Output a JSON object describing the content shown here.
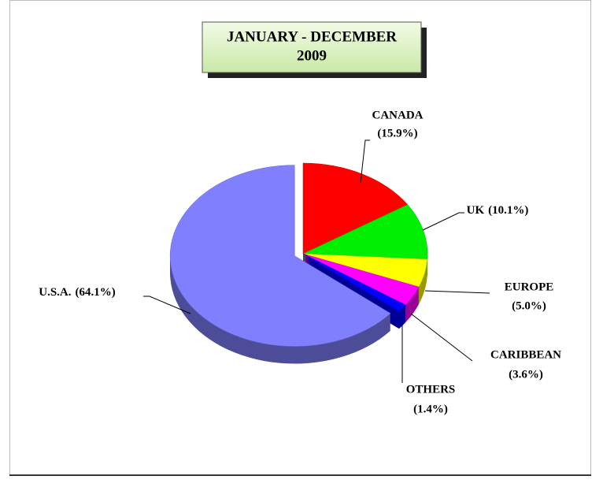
{
  "chart_data": {
    "type": "pie",
    "title": "JANUARY -  DECEMBER",
    "subtitle": "2009",
    "categories": [
      "CANADA",
      "UK",
      "EUROPE",
      "CARIBBEAN",
      "OTHERS",
      "U.S.A."
    ],
    "values": [
      15.9,
      10.1,
      5.0,
      3.6,
      1.4,
      64.1
    ],
    "value_labels": [
      "(15.9%)",
      "(10.1%)",
      "(5.0%)",
      "(3.6%)",
      "(1.4%)",
      "(64.1%)"
    ],
    "colors": [
      "#ff0000",
      "#00ee00",
      "#ffff00",
      "#ff00ff",
      "#0000ff",
      "#8080ff"
    ]
  }
}
